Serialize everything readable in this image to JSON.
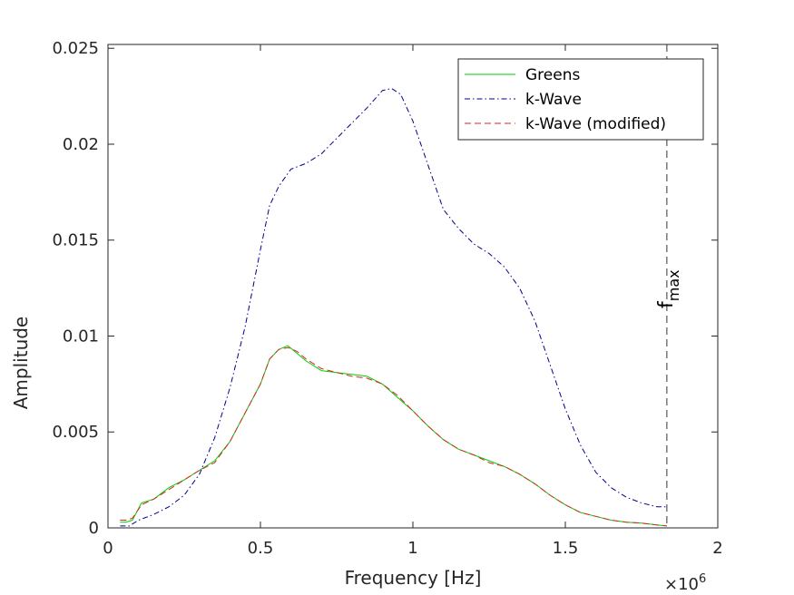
{
  "chart_data": {
    "type": "line",
    "xlabel": "Frequency [Hz]",
    "ylabel": "Amplitude",
    "x_exponent_label": "×10",
    "x_exponent_power": "6",
    "xlim": [
      0,
      2000000
    ],
    "ylim": [
      0,
      0.0252
    ],
    "grid": false,
    "legend_position": "top-right",
    "x_ticks": [
      0,
      500000,
      1000000,
      1500000,
      2000000
    ],
    "x_tick_labels": [
      "0",
      "0.5",
      "1",
      "1.5",
      "2"
    ],
    "y_ticks": [
      0,
      0.005,
      0.01,
      0.015,
      0.02,
      0.025
    ],
    "y_tick_labels": [
      "0",
      "0.005",
      "0.01",
      "0.015",
      "0.02",
      "0.025"
    ],
    "series": [
      {
        "name": "Greens",
        "color": "#00cc00",
        "dash": "solid",
        "x": [
          40000,
          60000,
          80000,
          110000,
          150000,
          200000,
          250000,
          300000,
          350000,
          400000,
          450000,
          500000,
          530000,
          560000,
          590000,
          620000,
          650000,
          700000,
          750000,
          800000,
          850000,
          900000,
          950000,
          1000000,
          1050000,
          1100000,
          1150000,
          1200000,
          1250000,
          1300000,
          1350000,
          1400000,
          1450000,
          1500000,
          1550000,
          1600000,
          1650000,
          1700000,
          1750000,
          1800000,
          1833000
        ],
        "y": [
          0.0003,
          0.0003,
          0.0004,
          0.0013,
          0.0015,
          0.0021,
          0.0025,
          0.003,
          0.0035,
          0.0045,
          0.006,
          0.0075,
          0.0088,
          0.0093,
          0.0095,
          0.0091,
          0.0087,
          0.0082,
          0.0081,
          0.008,
          0.0079,
          0.0075,
          0.0068,
          0.0061,
          0.0053,
          0.0046,
          0.0041,
          0.0038,
          0.0035,
          0.0032,
          0.0028,
          0.0023,
          0.0017,
          0.0012,
          0.0008,
          0.0006,
          0.0004,
          0.0003,
          0.00025,
          0.00015,
          0.0001
        ]
      },
      {
        "name": "k-Wave",
        "color": "#00008b",
        "dash": "dashdot",
        "x": [
          40000,
          70000,
          100000,
          150000,
          200000,
          250000,
          300000,
          350000,
          400000,
          450000,
          500000,
          530000,
          560000,
          600000,
          650000,
          700000,
          750000,
          800000,
          850000,
          900000,
          930000,
          960000,
          1000000,
          1050000,
          1100000,
          1150000,
          1200000,
          1250000,
          1300000,
          1350000,
          1400000,
          1450000,
          1500000,
          1550000,
          1600000,
          1650000,
          1700000,
          1750000,
          1800000,
          1833000
        ],
        "y": [
          0.0001,
          0.0001,
          0.0004,
          0.0007,
          0.0011,
          0.0017,
          0.0028,
          0.0047,
          0.0073,
          0.0105,
          0.0145,
          0.0168,
          0.0178,
          0.0187,
          0.019,
          0.0195,
          0.0203,
          0.0211,
          0.0219,
          0.0228,
          0.0229,
          0.0226,
          0.0212,
          0.0189,
          0.0166,
          0.0156,
          0.0148,
          0.0143,
          0.0136,
          0.0125,
          0.0108,
          0.0085,
          0.0062,
          0.0043,
          0.0029,
          0.0021,
          0.0016,
          0.0013,
          0.0011,
          0.0011
        ]
      },
      {
        "name": "k-Wave (modified)",
        "color": "#d92626",
        "dash": "dashed",
        "x": [
          40000,
          60000,
          80000,
          110000,
          150000,
          200000,
          250000,
          300000,
          350000,
          400000,
          450000,
          500000,
          530000,
          560000,
          590000,
          620000,
          650000,
          700000,
          750000,
          800000,
          850000,
          900000,
          950000,
          1000000,
          1050000,
          1100000,
          1150000,
          1200000,
          1250000,
          1300000,
          1350000,
          1400000,
          1450000,
          1500000,
          1550000,
          1600000,
          1650000,
          1700000,
          1750000,
          1800000,
          1833000
        ],
        "y": [
          0.0004,
          0.0004,
          0.0005,
          0.0012,
          0.0015,
          0.002,
          0.0025,
          0.003,
          0.0034,
          0.0045,
          0.006,
          0.0075,
          0.0088,
          0.0093,
          0.0094,
          0.0092,
          0.0088,
          0.0083,
          0.0081,
          0.0079,
          0.0078,
          0.0075,
          0.0069,
          0.0061,
          0.0053,
          0.0046,
          0.0041,
          0.0038,
          0.0034,
          0.0032,
          0.0028,
          0.0023,
          0.0017,
          0.0012,
          0.0008,
          0.0006,
          0.0004,
          0.0003,
          0.00025,
          0.00015,
          0.0001
        ]
      }
    ],
    "annotations": [
      {
        "type": "vertical-line",
        "x": 1833000,
        "style": "dashed",
        "label": "f",
        "label_subscript": "max"
      }
    ]
  }
}
